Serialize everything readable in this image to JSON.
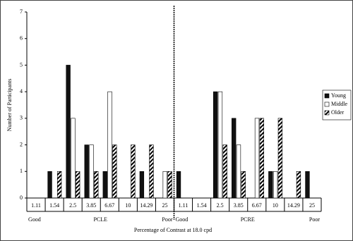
{
  "chart_data": {
    "type": "bar",
    "x_label": "Percentage of Contrast at 18.0 cpd",
    "y_label": "Number of Participants",
    "categories": [
      "1.11",
      "1.54",
      "2.5",
      "3.85",
      "6.67",
      "10",
      "14.29",
      "25",
      "1.11",
      "1.54",
      "2.5",
      "3.85",
      "6.67",
      "10",
      "14.29",
      "25"
    ],
    "groups": [
      {
        "name": "PCLE",
        "left": "Good",
        "right": "Poor"
      },
      {
        "name": "PCRE",
        "left": "Good",
        "right": "Poor"
      }
    ],
    "series": [
      {
        "name": "Young",
        "color": "#111111",
        "values": [
          0,
          1,
          5,
          2,
          1,
          0,
          1,
          0,
          1,
          0,
          4,
          3,
          0,
          1,
          0,
          1
        ]
      },
      {
        "name": "Middle",
        "color": "#ffffff",
        "values": [
          0,
          0,
          3,
          2,
          4,
          0,
          0,
          1,
          0,
          0,
          4,
          2,
          3,
          1,
          0,
          0
        ]
      },
      {
        "name": "Older",
        "color": "#ffffff",
        "pattern": "diagonal",
        "values": [
          0,
          1,
          1,
          1,
          2,
          2,
          2,
          1,
          0,
          0,
          2,
          1,
          3,
          3,
          1,
          0
        ]
      }
    ],
    "ylim": [
      0,
      7
    ],
    "yticks": [
      0,
      1,
      2,
      3,
      4,
      5,
      6,
      7
    ],
    "grid": false,
    "legend": "right"
  }
}
